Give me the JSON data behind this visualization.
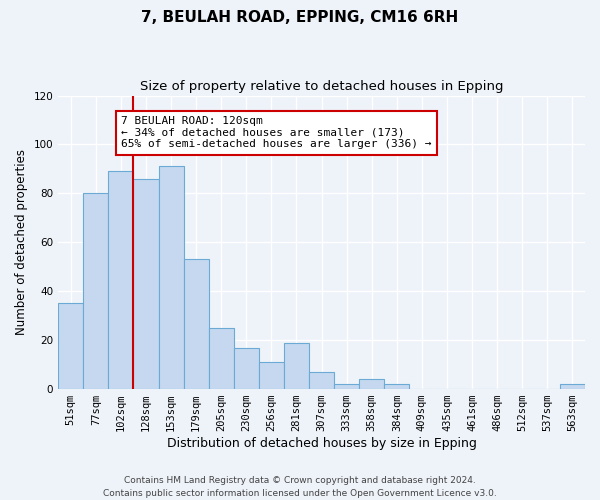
{
  "title": "7, BEULAH ROAD, EPPING, CM16 6RH",
  "subtitle": "Size of property relative to detached houses in Epping",
  "xlabel": "Distribution of detached houses by size in Epping",
  "ylabel": "Number of detached properties",
  "categories": [
    "51sqm",
    "77sqm",
    "102sqm",
    "128sqm",
    "153sqm",
    "179sqm",
    "205sqm",
    "230sqm",
    "256sqm",
    "281sqm",
    "307sqm",
    "333sqm",
    "358sqm",
    "384sqm",
    "409sqm",
    "435sqm",
    "461sqm",
    "486sqm",
    "512sqm",
    "537sqm",
    "563sqm"
  ],
  "values": [
    35,
    80,
    89,
    86,
    91,
    53,
    25,
    17,
    11,
    19,
    7,
    2,
    4,
    2,
    0,
    0,
    0,
    0,
    0,
    0,
    2
  ],
  "bar_color": "#c5d8f0",
  "bar_edgecolor": "#6aaad4",
  "vline_pos": 2.5,
  "vline_color": "#cc0000",
  "annotation_text": "7 BEULAH ROAD: 120sqm\n← 34% of detached houses are smaller (173)\n65% of semi-detached houses are larger (336) →",
  "annotation_box_edgecolor": "#cc0000",
  "ylim": [
    0,
    120
  ],
  "yticks": [
    0,
    20,
    40,
    60,
    80,
    100,
    120
  ],
  "footer": "Contains HM Land Registry data © Crown copyright and database right 2024.\nContains public sector information licensed under the Open Government Licence v3.0.",
  "bg_color": "#eef2f9",
  "grid_color": "#ffffff",
  "title_fontsize": 11,
  "subtitle_fontsize": 9.5,
  "xlabel_fontsize": 9,
  "ylabel_fontsize": 8.5,
  "tick_fontsize": 7.5,
  "annotation_fontsize": 8,
  "footer_fontsize": 6.5
}
